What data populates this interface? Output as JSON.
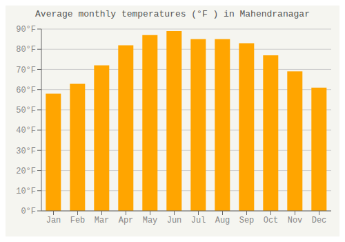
{
  "chart_data": {
    "type": "bar",
    "title": "Average monthly temperatures (°F ) in Mahendranagar",
    "categories": [
      "Jan",
      "Feb",
      "Mar",
      "Apr",
      "May",
      "Jun",
      "Jul",
      "Aug",
      "Sep",
      "Oct",
      "Nov",
      "Dec"
    ],
    "values": [
      58,
      63,
      72,
      82,
      87,
      89,
      85,
      85,
      83,
      77,
      69,
      61
    ],
    "color": "#FFA500",
    "ylim": [
      0,
      90
    ],
    "yticks": [
      {
        "value": 0,
        "label": "0°F"
      },
      {
        "value": 10,
        "label": "10°F"
      },
      {
        "value": 20,
        "label": "20°F"
      },
      {
        "value": 30,
        "label": "30°F"
      },
      {
        "value": 40,
        "label": "40°F"
      },
      {
        "value": 50,
        "label": "50°F"
      },
      {
        "value": 60,
        "label": "60°F"
      },
      {
        "value": 70,
        "label": "70°F"
      },
      {
        "value": 80,
        "label": "80°F"
      },
      {
        "value": 90,
        "label": "90°F"
      }
    ],
    "grid": true
  }
}
